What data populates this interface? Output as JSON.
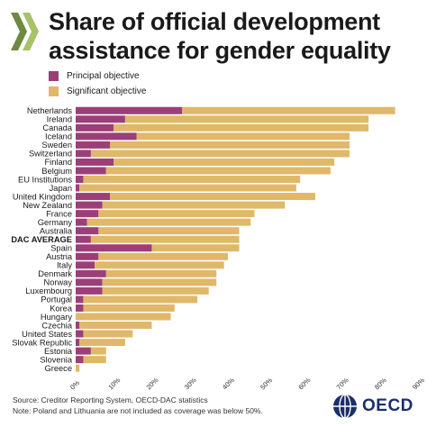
{
  "header": {
    "title_line1": "Share of official development",
    "title_line2": "assistance for gender equality"
  },
  "legend": {
    "principal": "Principal objective",
    "significant": "Significant objective"
  },
  "colors": {
    "principal": "#9c3f78",
    "significant": "#e0b86a",
    "chevron_dark": "#6d8a3e",
    "chevron_light": "#a8c26a",
    "logo_blue": "#1a2f6b"
  },
  "footer": {
    "source": "Source: Creditor Reporting System, OECD-DAC statistics",
    "note": "Note: Poland and Lithuania are not included as coverage was below 50%."
  },
  "logo": {
    "text": "OECD"
  },
  "chart_data": {
    "type": "bar",
    "orientation": "horizontal",
    "stacked": true,
    "categories": [
      "Netherlands",
      "Ireland",
      "Canada",
      "Iceland",
      "Sweden",
      "Switzerland",
      "Finland",
      "Belgium",
      "EU Institutions",
      "Japan",
      "United Kingdom",
      "New Zealand",
      "France",
      "Germany",
      "Australia",
      "DAC AVERAGE",
      "Spain",
      "Austria",
      "Italy",
      "Denmark",
      "Norway",
      "Luxembourg",
      "Portugal",
      "Korea",
      "Hungary",
      "Czechia",
      "United States",
      "Slovak Republic",
      "Estonia",
      "Slovenia",
      "Greece"
    ],
    "series": [
      {
        "name": "Principal objective",
        "values": [
          28,
          13,
          10,
          16,
          9,
          4,
          10,
          8,
          2,
          1,
          9,
          7,
          6,
          3,
          6,
          4,
          20,
          6,
          5,
          8,
          7,
          7,
          2,
          2,
          0,
          1,
          2,
          1,
          4,
          2,
          0
        ]
      },
      {
        "name": "Significant objective",
        "values": [
          56,
          64,
          67,
          56,
          63,
          68,
          58,
          59,
          57,
          57,
          54,
          48,
          41,
          43,
          37,
          39,
          23,
          34,
          34,
          29,
          30,
          28,
          30,
          24,
          25,
          19,
          13,
          12,
          4,
          6,
          1
        ]
      }
    ],
    "xlim": [
      0,
      90
    ],
    "xticks": [
      "0%",
      "10%",
      "20%",
      "30%",
      "40%",
      "50%",
      "60%",
      "70%",
      "80%",
      "90%"
    ],
    "highlight": "DAC AVERAGE"
  }
}
